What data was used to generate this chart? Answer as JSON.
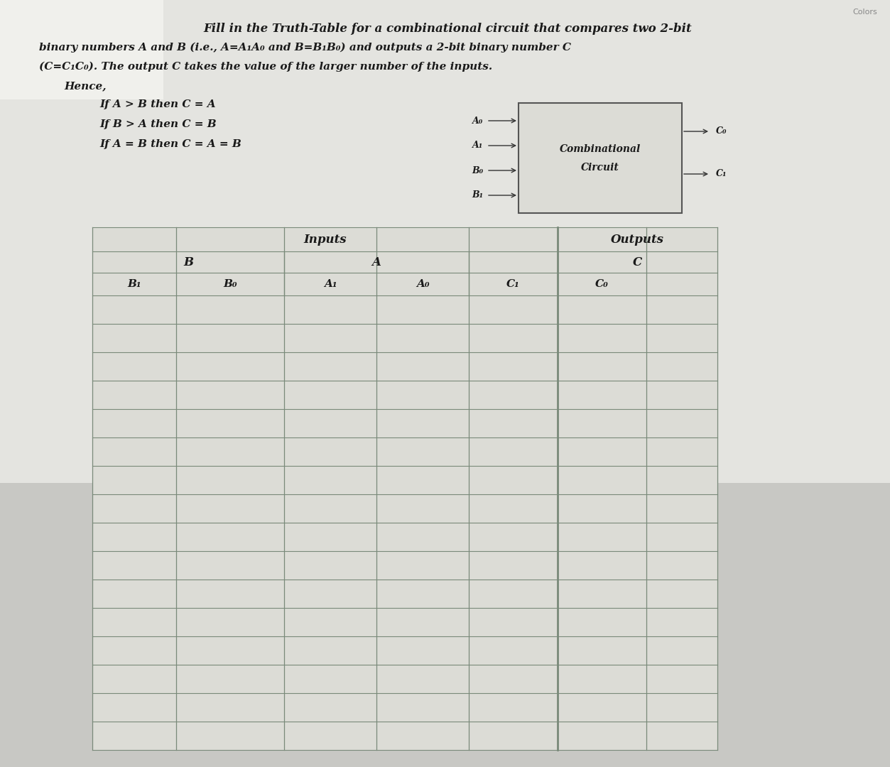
{
  "bg_color": "#c8c8c4",
  "paper_color": "#e0e0dc",
  "title": "Fill in the Truth-Table for a combinational circuit that compares two 2-bit",
  "line2": "binary numbers A and B (i.e., A=A₁A₀ and B=B₁B₀) and outputs a 2-bit binary number C",
  "line3": "(C=C₁C₀). The output C takes the value of the larger number of the inputs.",
  "line4": "Hence,",
  "cond1": "If A > B then C = A",
  "cond2": "If B > A then C = B",
  "cond3": "If A = B then C = A = B",
  "num_data_rows": 16,
  "text_color": "#1a1a1a",
  "table_line_color": "#7a8a7a",
  "table_bg": "#dcdcd6",
  "font_size_title": 12,
  "font_size_body": 11,
  "font_size_table": 11,
  "colors_label": "Colors"
}
